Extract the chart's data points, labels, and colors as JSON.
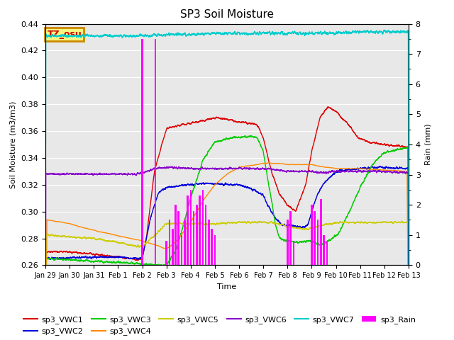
{
  "title": "SP3 Soil Moisture",
  "xlabel": "Time",
  "ylabel_left": "Soil Moisture (m3/m3)",
  "ylabel_right": "Rain (mm)",
  "ylim_left": [
    0.26,
    0.44
  ],
  "ylim_right": [
    0.0,
    8.0
  ],
  "bg_color": "#e8e8e8",
  "tz_label": "TZ_osu",
  "tz_bg": "#f5f580",
  "tz_border": "#cc8800",
  "colors": {
    "VWC1": "#dd0000",
    "VWC2": "#0000dd",
    "VWC3": "#00cc00",
    "VWC4": "#ff8800",
    "VWC5": "#cccc00",
    "VWC6": "#8800cc",
    "VWC7": "#00cccc",
    "Rain": "#ff00ff"
  },
  "x_ticks_labels": [
    "Jan 29",
    "Jan 30",
    "Jan 31",
    "Feb 1",
    "Feb 2",
    "Feb 3",
    "Feb 4",
    "Feb 5",
    "Feb 6",
    "Feb 7",
    "Feb 8",
    "Feb 9",
    "Feb 10",
    "Feb 11",
    "Feb 12",
    "Feb 13"
  ],
  "x_ticks_pos": [
    0,
    24,
    48,
    72,
    96,
    120,
    144,
    168,
    192,
    216,
    240,
    264,
    288,
    312,
    336,
    360
  ]
}
